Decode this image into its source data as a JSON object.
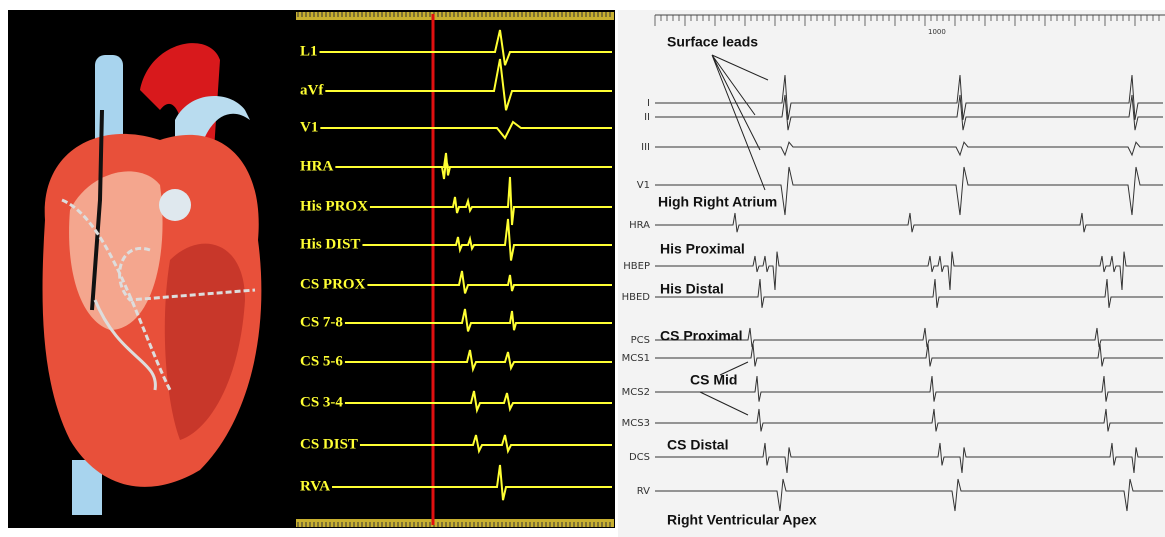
{
  "left_panel": {
    "channels": [
      "L1",
      "aVf",
      "V1",
      "HRA",
      "His PROX",
      "His DIST",
      "CS PROX",
      "CS 7-8",
      "CS 5-6",
      "CS 3-4",
      "CS DIST",
      "RVA"
    ]
  },
  "right_panel": {
    "scale_label": "1000",
    "channels": [
      "I",
      "II",
      "III",
      "V1",
      "HRA",
      "HBEP",
      "HBED",
      "PCS",
      "MCS1",
      "MCS2",
      "MCS3",
      "DCS",
      "RV"
    ],
    "annotations": [
      "Surface leads",
      "High Right Atrium",
      "His Proximal",
      "His Distal",
      "CS Proximal",
      "CS Mid",
      "CS Distal",
      "Right Ventricular Apex"
    ]
  }
}
